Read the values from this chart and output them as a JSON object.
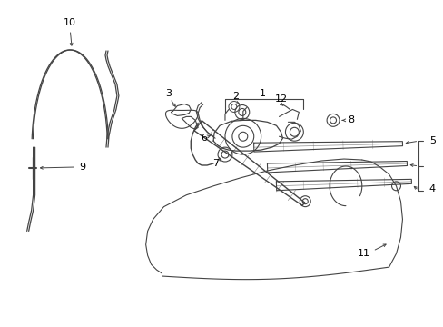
{
  "bg_color": "#ffffff",
  "line_color": "#444444",
  "fig_width": 4.89,
  "fig_height": 3.6,
  "dpi": 100
}
